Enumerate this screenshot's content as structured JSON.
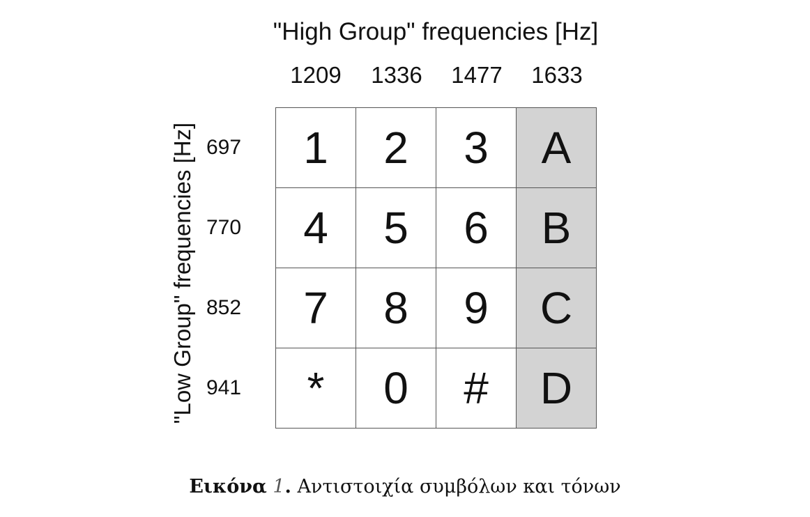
{
  "diagram": {
    "high_group_title": "\"High Group\" frequencies [Hz]",
    "low_group_title": "\"Low Group\" frequencies [Hz]",
    "high_frequencies": [
      "1209",
      "1336",
      "1477",
      "1633"
    ],
    "low_frequencies": [
      "697",
      "770",
      "852",
      "941"
    ],
    "keys": [
      [
        "1",
        "2",
        "3",
        "A"
      ],
      [
        "4",
        "5",
        "6",
        "B"
      ],
      [
        "7",
        "8",
        "9",
        "C"
      ],
      [
        "*",
        "0",
        "#",
        "D"
      ]
    ],
    "shaded_column_color": "#d3d3d3"
  },
  "caption": {
    "label": "Εικόνα",
    "number": "1",
    "separator": ".",
    "text": "Αντιστοιχία συμβόλων και τόνων"
  }
}
